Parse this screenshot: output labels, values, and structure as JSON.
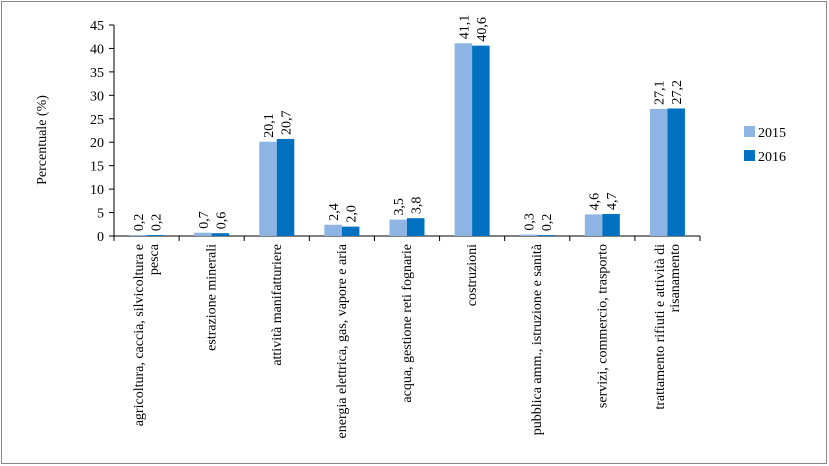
{
  "chart_data": {
    "type": "bar",
    "title": "",
    "xlabel": "",
    "ylabel": "Percentuale (%)",
    "ylim": [
      0,
      45
    ],
    "yticks": [
      "0",
      "5",
      "10",
      "15",
      "20",
      "25",
      "30",
      "35",
      "40",
      "45"
    ],
    "grid": false,
    "legend_position": "right",
    "categories": [
      [
        "agricoltura, caccia, silvicoltura e",
        "pesca"
      ],
      [
        "estrazione minerali"
      ],
      [
        "attività manifatturiere"
      ],
      [
        "energia elettrica, gas, vapore e aria"
      ],
      [
        "acqua, gestione reti fognarie"
      ],
      [
        "costruzioni"
      ],
      [
        "pubblica amm., istruzione e sanità"
      ],
      [
        "servizi, commercio, trasporto"
      ],
      [
        "trattamento rifiuti e attività di",
        "risanamento"
      ]
    ],
    "series": [
      {
        "name": "2015",
        "color": "#8eb4e3",
        "values": [
          0.2,
          0.7,
          20.1,
          2.4,
          3.5,
          41.1,
          0.3,
          4.6,
          27.1
        ],
        "labels": [
          "0,2",
          "0,7",
          "20,1",
          "2,4",
          "3,5",
          "41,1",
          "0,3",
          "4,6",
          "27,1"
        ]
      },
      {
        "name": "2016",
        "color": "#0070c0",
        "values": [
          0.2,
          0.6,
          20.7,
          2.0,
          3.8,
          40.6,
          0.2,
          4.7,
          27.2
        ],
        "labels": [
          "0,2",
          "0,6",
          "20,7",
          "2,0",
          "3,8",
          "40,6",
          "0,2",
          "4,7",
          "27,2"
        ]
      }
    ]
  }
}
